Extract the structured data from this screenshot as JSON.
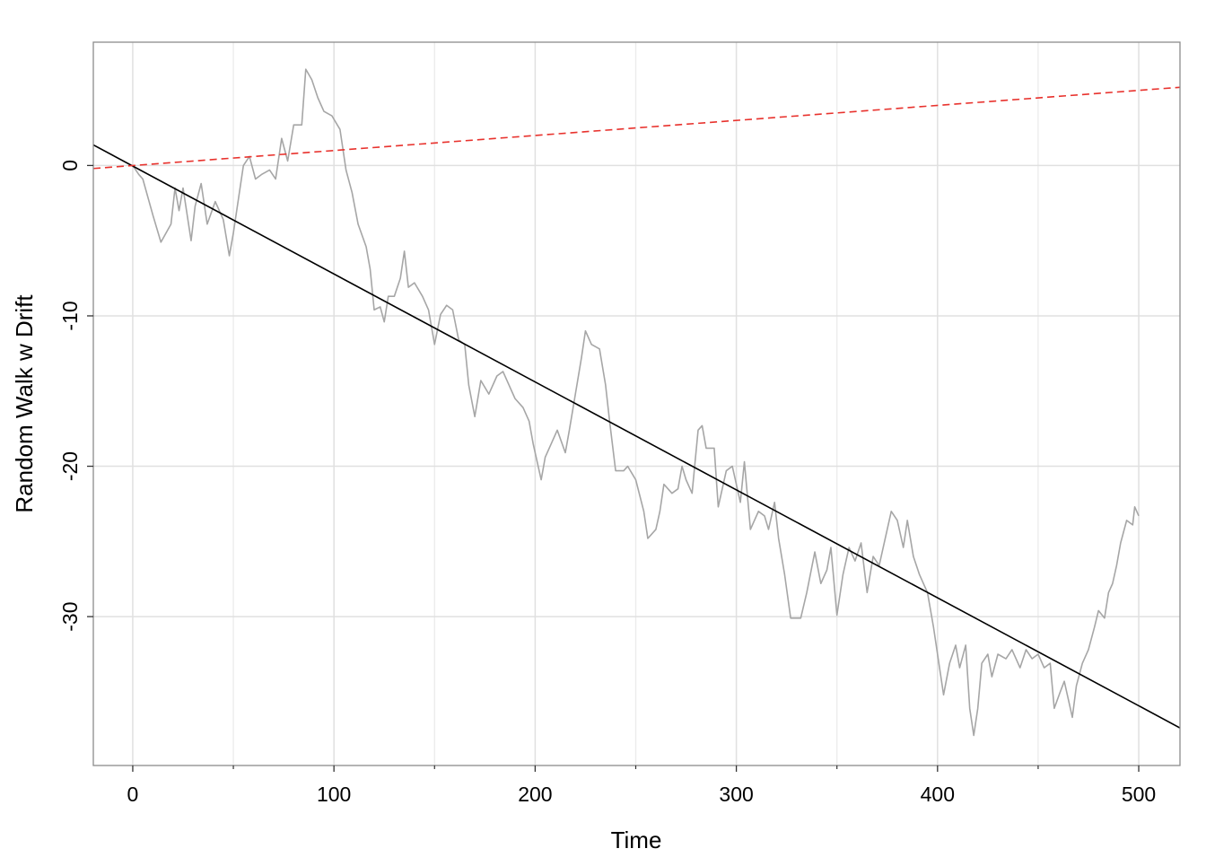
{
  "chart_data": {
    "type": "line",
    "xlabel": "Time",
    "ylabel": "Random Walk w Drift",
    "xlim": [
      -19.6,
      520.5
    ],
    "ylim": [
      -39.9,
      8.2
    ],
    "xticks": [
      0,
      100,
      200,
      300,
      400,
      500
    ],
    "xminor_ticks": [
      50,
      150,
      250,
      350,
      450
    ],
    "yticks": [
      0,
      -10,
      -20,
      -30
    ],
    "grid": true,
    "series": [
      {
        "color": "#a6a6a6",
        "dash": false,
        "x": [
          0,
          3,
          5,
          10,
          14,
          19,
          21,
          23,
          25,
          29,
          31,
          34,
          37,
          41,
          45,
          48,
          50,
          52,
          55,
          58,
          61,
          64,
          68,
          71,
          74,
          77,
          80,
          84,
          86,
          89,
          92,
          95,
          99,
          103,
          106,
          109,
          112,
          116,
          118,
          120,
          123,
          125,
          127,
          130,
          133,
          135,
          137,
          140,
          144,
          147,
          150,
          153,
          156,
          159,
          162,
          165,
          167,
          170,
          173,
          177,
          181,
          184,
          187,
          190,
          194,
          197,
          199,
          203,
          205,
          208,
          211,
          215,
          217,
          220,
          223,
          225,
          228,
          232,
          235,
          237,
          240,
          244,
          246,
          250,
          254,
          256,
          260,
          262,
          264,
          268,
          271,
          273,
          275,
          278,
          281,
          283,
          285,
          289,
          291,
          293,
          295,
          298,
          302,
          304,
          307,
          311,
          314,
          316,
          319,
          321,
          324,
          327,
          329,
          332,
          335,
          339,
          342,
          345,
          347,
          350,
          353,
          356,
          359,
          362,
          365,
          368,
          371,
          374,
          377,
          380,
          383,
          385,
          388,
          391,
          395,
          398,
          401,
          403,
          406,
          409,
          411,
          414,
          416,
          418,
          420,
          422,
          425,
          427,
          430,
          434,
          437,
          441,
          444,
          447,
          450,
          453,
          456,
          458,
          461,
          463,
          467,
          469,
          472,
          475,
          478,
          480,
          483,
          485,
          487,
          489,
          491,
          494,
          497,
          498,
          500
        ],
        "values": [
          0,
          -0.6,
          -0.9,
          -3.3,
          -5.1,
          -3.9,
          -1.5,
          -3,
          -1.5,
          -5,
          -2.7,
          -1.2,
          -3.9,
          -2.4,
          -3.6,
          -6,
          -4.5,
          -2.7,
          0,
          0.6,
          -0.9,
          -0.6,
          -0.3,
          -0.9,
          1.8,
          0.3,
          2.7,
          2.7,
          6.4,
          5.7,
          4.5,
          3.6,
          3.3,
          2.4,
          -0.3,
          -1.8,
          -3.9,
          -5.4,
          -6.9,
          -9.6,
          -9.4,
          -10.4,
          -8.7,
          -8.7,
          -7.5,
          -5.7,
          -8.1,
          -7.8,
          -8.7,
          -9.6,
          -11.9,
          -9.9,
          -9.3,
          -9.6,
          -11.6,
          -11.9,
          -14.6,
          -16.7,
          -14.3,
          -15.2,
          -14,
          -13.7,
          -14.6,
          -15.5,
          -16.1,
          -17,
          -18.5,
          -20.9,
          -19.4,
          -18.5,
          -17.6,
          -19.1,
          -17.6,
          -15.2,
          -12.8,
          -11,
          -11.9,
          -12.2,
          -14.6,
          -17,
          -20.3,
          -20.3,
          -20,
          -20.9,
          -23,
          -24.8,
          -24.2,
          -23,
          -21.2,
          -21.8,
          -21.5,
          -20,
          -20.9,
          -21.8,
          -17.6,
          -17.3,
          -18.8,
          -18.8,
          -22.7,
          -21.5,
          -20.3,
          -20,
          -22.4,
          -19.7,
          -24.2,
          -23,
          -23.3,
          -24.2,
          -22.4,
          -24.8,
          -27.2,
          -30.1,
          -30.1,
          -30.1,
          -28.4,
          -25.7,
          -27.8,
          -26.9,
          -25.4,
          -29.9,
          -27.2,
          -25.4,
          -26.3,
          -25.1,
          -28.4,
          -26,
          -26.6,
          -24.8,
          -23,
          -23.6,
          -25.4,
          -23.6,
          -26,
          -27.2,
          -28.4,
          -30.7,
          -33.4,
          -35.2,
          -33.1,
          -31.9,
          -33.4,
          -31.9,
          -36.1,
          -37.9,
          -36.1,
          -33.1,
          -32.5,
          -34,
          -32.5,
          -32.8,
          -32.2,
          -33.4,
          -32.2,
          -32.8,
          -32.5,
          -33.4,
          -33.1,
          -36.1,
          -35,
          -34.3,
          -36.7,
          -34.6,
          -33.1,
          -32.2,
          -30.7,
          -29.6,
          -30.1,
          -28.4,
          -27.8,
          -26.6,
          -25.1,
          -23.6,
          -23.9,
          -22.7,
          -23.3
        ]
      },
      {
        "color": "#000000",
        "dash": false,
        "x": [
          -19.6,
          520.5
        ],
        "values": [
          1.37,
          -37.4
        ]
      },
      {
        "color": "#e8322d",
        "dash": true,
        "x": [
          -19.6,
          520.5
        ],
        "values": [
          -0.2,
          5.2
        ]
      }
    ]
  }
}
